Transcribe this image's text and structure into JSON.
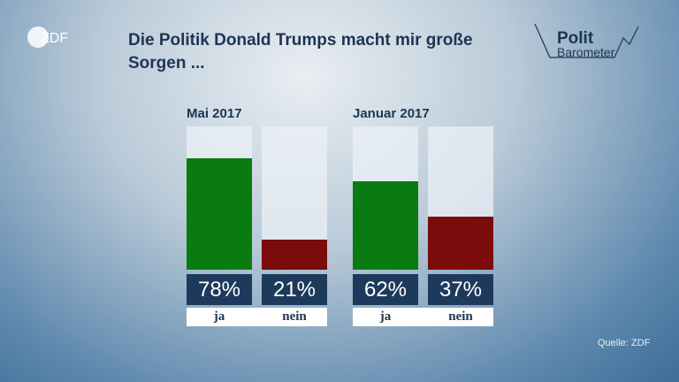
{
  "logo": "ZDF",
  "brand": {
    "top": "Polit",
    "bottom": "Barometer"
  },
  "chart_data": {
    "type": "bar",
    "title": "Die Politik Donald Trumps macht mir große Sorgen ...",
    "ylim": [
      0,
      100
    ],
    "colors": [
      "#0a7b10",
      "#7a0c0c"
    ],
    "groups": [
      {
        "name": "Mai 2017",
        "categories": [
          "ja",
          "nein"
        ],
        "values": [
          78,
          21
        ],
        "value_labels": [
          "78%",
          "21%"
        ]
      },
      {
        "name": "Januar 2017",
        "categories": [
          "ja",
          "nein"
        ],
        "values": [
          62,
          37
        ],
        "value_labels": [
          "62%",
          "37%"
        ]
      }
    ],
    "source": "Quelle: ZDF"
  }
}
